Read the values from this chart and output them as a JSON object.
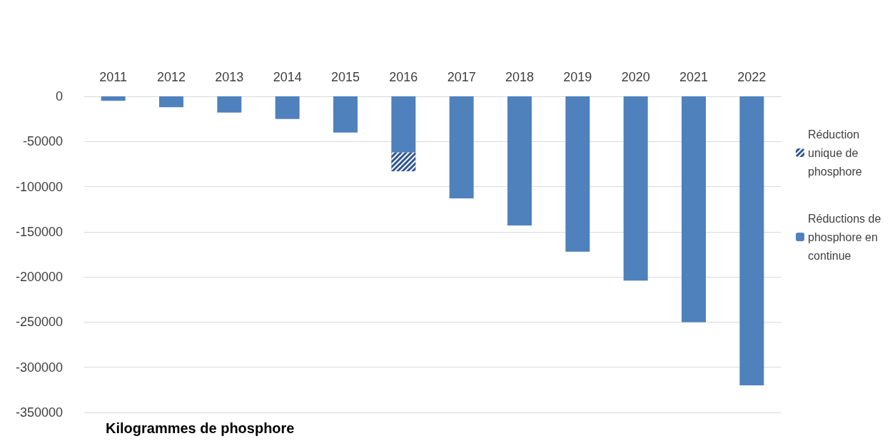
{
  "chart_data": {
    "type": "bar",
    "stacked": true,
    "annotations": [
      "Kilogrammes de phosphore"
    ],
    "categories": [
      "2011",
      "2012",
      "2013",
      "2014",
      "2015",
      "2016",
      "2017",
      "2018",
      "2019",
      "2020",
      "2021",
      "2022"
    ],
    "series": [
      {
        "name": "Réductions de phosphore en continue",
        "color": "#4f81bd",
        "values": [
          -5000,
          -12000,
          -18000,
          -25000,
          -40000,
          -62000,
          -113000,
          -143000,
          -172000,
          -204000,
          -250000,
          -320000
        ]
      },
      {
        "name": "Réduction unique de phosphore",
        "color": "#2f5597",
        "values": [
          null,
          null,
          null,
          null,
          null,
          -21000,
          null,
          null,
          null,
          null,
          null,
          null
        ]
      }
    ],
    "ylim": [
      -350000,
      0
    ],
    "yticks": [
      -350000,
      -300000,
      -250000,
      -200000,
      -150000,
      -100000,
      -50000,
      0
    ],
    "grid": "y",
    "legend": "right"
  }
}
